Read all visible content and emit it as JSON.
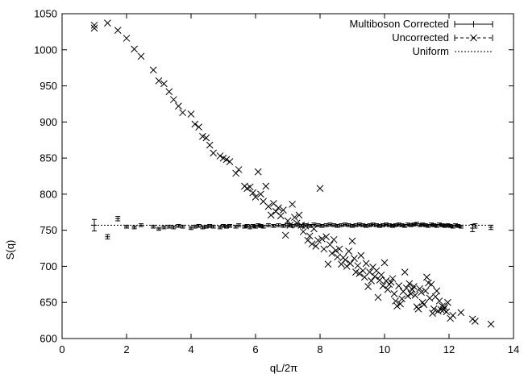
{
  "chart_data": {
    "type": "scatter",
    "xlabel": "qL/2π",
    "ylabel": "S(q)",
    "xlim": [
      0,
      14
    ],
    "ylim": [
      600,
      1050
    ],
    "xticks": [
      0,
      2,
      4,
      6,
      8,
      10,
      12,
      14
    ],
    "yticks": [
      600,
      650,
      700,
      750,
      800,
      850,
      900,
      950,
      1000,
      1050
    ],
    "grid": false,
    "legend_position": "top-right",
    "color": "#000000",
    "legend": [
      "Multiboson Corrected",
      "Uncorrected",
      "Uniform"
    ],
    "series": [
      {
        "name": "Multiboson Corrected",
        "marker": "plus-with-errorbars",
        "points": [
          {
            "x": 1.0,
            "y": 757,
            "err": 8
          },
          {
            "x": 1.41,
            "y": 741,
            "err": 3
          },
          {
            "x": 1.73,
            "y": 766,
            "err": 3
          },
          {
            "x": 2.0,
            "y": 755,
            "err": 2
          },
          {
            "x": 2.24,
            "y": 754,
            "err": 2
          },
          {
            "x": 2.45,
            "y": 757,
            "err": 2
          },
          {
            "x": 2.83,
            "y": 755,
            "err": 2
          },
          {
            "x": 3.0,
            "y": 752,
            "err": 2
          },
          {
            "x": 3.16,
            "y": 754,
            "err": 2
          },
          {
            "x": 3.32,
            "y": 755,
            "err": 2
          },
          {
            "x": 3.46,
            "y": 754,
            "err": 2
          },
          {
            "x": 3.61,
            "y": 756,
            "err": 2
          },
          {
            "x": 3.74,
            "y": 755,
            "err": 2
          },
          {
            "x": 4.0,
            "y": 753,
            "err": 2
          },
          {
            "x": 4.12,
            "y": 755,
            "err": 2
          },
          {
            "x": 4.24,
            "y": 756,
            "err": 2
          },
          {
            "x": 4.36,
            "y": 754,
            "err": 2
          },
          {
            "x": 4.47,
            "y": 755,
            "err": 2
          },
          {
            "x": 4.58,
            "y": 756,
            "err": 2
          },
          {
            "x": 4.69,
            "y": 755,
            "err": 2
          },
          {
            "x": 4.9,
            "y": 754,
            "err": 2
          },
          {
            "x": 5.0,
            "y": 756,
            "err": 2
          },
          {
            "x": 5.1,
            "y": 755,
            "err": 2
          },
          {
            "x": 5.2,
            "y": 756,
            "err": 2
          },
          {
            "x": 5.39,
            "y": 755,
            "err": 2
          },
          {
            "x": 5.48,
            "y": 757,
            "err": 2
          },
          {
            "x": 5.66,
            "y": 755,
            "err": 2
          },
          {
            "x": 5.74,
            "y": 756,
            "err": 2
          },
          {
            "x": 5.83,
            "y": 754,
            "err": 2
          },
          {
            "x": 5.92,
            "y": 756,
            "err": 2
          },
          {
            "x": 6.0,
            "y": 755,
            "err": 2
          },
          {
            "x": 6.08,
            "y": 757,
            "err": 2
          },
          {
            "x": 6.16,
            "y": 756,
            "err": 2
          },
          {
            "x": 6.24,
            "y": 755,
            "err": 2
          },
          {
            "x": 6.4,
            "y": 757,
            "err": 2
          },
          {
            "x": 6.56,
            "y": 756,
            "err": 2
          },
          {
            "x": 6.71,
            "y": 757,
            "err": 2
          },
          {
            "x": 6.86,
            "y": 756,
            "err": 2
          },
          {
            "x": 7.0,
            "y": 757,
            "err": 2
          },
          {
            "x": 7.14,
            "y": 756,
            "err": 2
          },
          {
            "x": 7.28,
            "y": 757,
            "err": 2
          },
          {
            "x": 7.42,
            "y": 756,
            "err": 2
          },
          {
            "x": 7.55,
            "y": 757,
            "err": 2
          },
          {
            "x": 7.68,
            "y": 756,
            "err": 2
          },
          {
            "x": 7.81,
            "y": 758,
            "err": 2
          },
          {
            "x": 7.94,
            "y": 757,
            "err": 2
          },
          {
            "x": 8.06,
            "y": 756,
            "err": 2
          },
          {
            "x": 8.19,
            "y": 757,
            "err": 2
          },
          {
            "x": 8.31,
            "y": 758,
            "err": 2
          },
          {
            "x": 8.43,
            "y": 757,
            "err": 2
          },
          {
            "x": 8.54,
            "y": 756,
            "err": 2
          },
          {
            "x": 8.66,
            "y": 757,
            "err": 2
          },
          {
            "x": 8.78,
            "y": 758,
            "err": 2
          },
          {
            "x": 8.89,
            "y": 757,
            "err": 2
          },
          {
            "x": 9.0,
            "y": 756,
            "err": 2
          },
          {
            "x": 9.11,
            "y": 757,
            "err": 2
          },
          {
            "x": 9.22,
            "y": 758,
            "err": 2
          },
          {
            "x": 9.33,
            "y": 757,
            "err": 2
          },
          {
            "x": 9.43,
            "y": 756,
            "err": 2
          },
          {
            "x": 9.54,
            "y": 757,
            "err": 2
          },
          {
            "x": 9.64,
            "y": 758,
            "err": 2
          },
          {
            "x": 9.75,
            "y": 757,
            "err": 2
          },
          {
            "x": 9.85,
            "y": 756,
            "err": 2
          },
          {
            "x": 9.95,
            "y": 757,
            "err": 2
          },
          {
            "x": 10.05,
            "y": 758,
            "err": 2
          },
          {
            "x": 10.15,
            "y": 757,
            "err": 2
          },
          {
            "x": 10.25,
            "y": 756,
            "err": 2
          },
          {
            "x": 10.34,
            "y": 757,
            "err": 2
          },
          {
            "x": 10.44,
            "y": 758,
            "err": 2
          },
          {
            "x": 10.54,
            "y": 757,
            "err": 2
          },
          {
            "x": 10.63,
            "y": 756,
            "err": 2
          },
          {
            "x": 10.72,
            "y": 758,
            "err": 2
          },
          {
            "x": 10.82,
            "y": 757,
            "err": 2
          },
          {
            "x": 10.91,
            "y": 758,
            "err": 2
          },
          {
            "x": 11.0,
            "y": 759,
            "err": 2
          },
          {
            "x": 11.09,
            "y": 757,
            "err": 2
          },
          {
            "x": 11.18,
            "y": 758,
            "err": 2
          },
          {
            "x": 11.27,
            "y": 757,
            "err": 2
          },
          {
            "x": 11.36,
            "y": 756,
            "err": 2
          },
          {
            "x": 11.45,
            "y": 758,
            "err": 2
          },
          {
            "x": 11.53,
            "y": 757,
            "err": 2
          },
          {
            "x": 11.62,
            "y": 756,
            "err": 2
          },
          {
            "x": 11.7,
            "y": 758,
            "err": 2
          },
          {
            "x": 11.79,
            "y": 757,
            "err": 2
          },
          {
            "x": 11.87,
            "y": 756,
            "err": 2
          },
          {
            "x": 11.96,
            "y": 757,
            "err": 2
          },
          {
            "x": 12.04,
            "y": 756,
            "err": 2
          },
          {
            "x": 12.12,
            "y": 755,
            "err": 2
          },
          {
            "x": 12.2,
            "y": 757,
            "err": 2
          },
          {
            "x": 12.28,
            "y": 756,
            "err": 2
          },
          {
            "x": 12.37,
            "y": 755,
            "err": 2
          },
          {
            "x": 12.73,
            "y": 753,
            "err": 5
          },
          {
            "x": 12.81,
            "y": 756,
            "err": 3
          },
          {
            "x": 13.3,
            "y": 754,
            "err": 3
          }
        ]
      },
      {
        "name": "Uncorrected",
        "marker": "x",
        "points": [
          {
            "x": 1.0,
            "y": 1030
          },
          {
            "x": 1.0,
            "y": 1034
          },
          {
            "x": 1.41,
            "y": 1037
          },
          {
            "x": 1.73,
            "y": 1027
          },
          {
            "x": 2.0,
            "y": 1016
          },
          {
            "x": 2.24,
            "y": 1001
          },
          {
            "x": 2.45,
            "y": 991
          },
          {
            "x": 2.83,
            "y": 972
          },
          {
            "x": 3.0,
            "y": 957
          },
          {
            "x": 3.16,
            "y": 953
          },
          {
            "x": 3.32,
            "y": 942
          },
          {
            "x": 3.46,
            "y": 931
          },
          {
            "x": 3.61,
            "y": 922
          },
          {
            "x": 3.74,
            "y": 913
          },
          {
            "x": 4.0,
            "y": 911
          },
          {
            "x": 4.12,
            "y": 897
          },
          {
            "x": 4.24,
            "y": 893
          },
          {
            "x": 4.36,
            "y": 880
          },
          {
            "x": 4.47,
            "y": 878
          },
          {
            "x": 4.58,
            "y": 868
          },
          {
            "x": 4.69,
            "y": 857
          },
          {
            "x": 4.9,
            "y": 853
          },
          {
            "x": 5.0,
            "y": 850
          },
          {
            "x": 5.1,
            "y": 848
          },
          {
            "x": 5.2,
            "y": 845
          },
          {
            "x": 5.39,
            "y": 829
          },
          {
            "x": 5.48,
            "y": 834
          },
          {
            "x": 5.66,
            "y": 811
          },
          {
            "x": 5.74,
            "y": 808
          },
          {
            "x": 5.83,
            "y": 810
          },
          {
            "x": 5.92,
            "y": 802
          },
          {
            "x": 6.0,
            "y": 796
          },
          {
            "x": 6.08,
            "y": 831
          },
          {
            "x": 6.16,
            "y": 800
          },
          {
            "x": 6.24,
            "y": 790
          },
          {
            "x": 6.32,
            "y": 811
          },
          {
            "x": 6.4,
            "y": 783
          },
          {
            "x": 6.48,
            "y": 771
          },
          {
            "x": 6.56,
            "y": 787
          },
          {
            "x": 6.63,
            "y": 776
          },
          {
            "x": 6.71,
            "y": 781
          },
          {
            "x": 6.78,
            "y": 770
          },
          {
            "x": 6.86,
            "y": 778
          },
          {
            "x": 6.93,
            "y": 743
          },
          {
            "x": 7.0,
            "y": 763
          },
          {
            "x": 7.07,
            "y": 757
          },
          {
            "x": 7.14,
            "y": 786
          },
          {
            "x": 7.21,
            "y": 768
          },
          {
            "x": 7.28,
            "y": 760
          },
          {
            "x": 7.35,
            "y": 771
          },
          {
            "x": 7.42,
            "y": 757
          },
          {
            "x": 7.48,
            "y": 748
          },
          {
            "x": 7.55,
            "y": 756
          },
          {
            "x": 7.62,
            "y": 736
          },
          {
            "x": 7.68,
            "y": 742
          },
          {
            "x": 7.75,
            "y": 731
          },
          {
            "x": 7.81,
            "y": 752
          },
          {
            "x": 7.87,
            "y": 728
          },
          {
            "x": 7.94,
            "y": 736
          },
          {
            "x": 8.0,
            "y": 808
          },
          {
            "x": 8.06,
            "y": 738
          },
          {
            "x": 8.12,
            "y": 724
          },
          {
            "x": 8.19,
            "y": 741
          },
          {
            "x": 8.25,
            "y": 703
          },
          {
            "x": 8.31,
            "y": 730
          },
          {
            "x": 8.37,
            "y": 718
          },
          {
            "x": 8.43,
            "y": 737
          },
          {
            "x": 8.49,
            "y": 722
          },
          {
            "x": 8.54,
            "y": 713
          },
          {
            "x": 8.6,
            "y": 724
          },
          {
            "x": 8.66,
            "y": 703
          },
          {
            "x": 8.72,
            "y": 712
          },
          {
            "x": 8.78,
            "y": 709
          },
          {
            "x": 8.83,
            "y": 700
          },
          {
            "x": 8.89,
            "y": 721
          },
          {
            "x": 8.94,
            "y": 704
          },
          {
            "x": 9.0,
            "y": 735
          },
          {
            "x": 9.06,
            "y": 711
          },
          {
            "x": 9.11,
            "y": 692
          },
          {
            "x": 9.17,
            "y": 701
          },
          {
            "x": 9.22,
            "y": 690
          },
          {
            "x": 9.27,
            "y": 715
          },
          {
            "x": 9.33,
            "y": 694
          },
          {
            "x": 9.38,
            "y": 685
          },
          {
            "x": 9.43,
            "y": 704
          },
          {
            "x": 9.49,
            "y": 672
          },
          {
            "x": 9.54,
            "y": 692
          },
          {
            "x": 9.59,
            "y": 680
          },
          {
            "x": 9.64,
            "y": 699
          },
          {
            "x": 9.7,
            "y": 686
          },
          {
            "x": 9.75,
            "y": 694
          },
          {
            "x": 9.8,
            "y": 657
          },
          {
            "x": 9.85,
            "y": 681
          },
          {
            "x": 9.9,
            "y": 688
          },
          {
            "x": 9.95,
            "y": 673
          },
          {
            "x": 10.0,
            "y": 705
          },
          {
            "x": 10.05,
            "y": 680
          },
          {
            "x": 10.1,
            "y": 668
          },
          {
            "x": 10.15,
            "y": 675
          },
          {
            "x": 10.2,
            "y": 678
          },
          {
            "x": 10.25,
            "y": 683
          },
          {
            "x": 10.3,
            "y": 662
          },
          {
            "x": 10.34,
            "y": 652
          },
          {
            "x": 10.39,
            "y": 645
          },
          {
            "x": 10.44,
            "y": 673
          },
          {
            "x": 10.49,
            "y": 648
          },
          {
            "x": 10.54,
            "y": 655
          },
          {
            "x": 10.58,
            "y": 665
          },
          {
            "x": 10.63,
            "y": 692
          },
          {
            "x": 10.68,
            "y": 670
          },
          {
            "x": 10.72,
            "y": 659
          },
          {
            "x": 10.77,
            "y": 676
          },
          {
            "x": 10.82,
            "y": 662
          },
          {
            "x": 10.86,
            "y": 668
          },
          {
            "x": 10.91,
            "y": 672
          },
          {
            "x": 10.95,
            "y": 660
          },
          {
            "x": 11.0,
            "y": 644
          },
          {
            "x": 11.05,
            "y": 641
          },
          {
            "x": 11.09,
            "y": 669
          },
          {
            "x": 11.14,
            "y": 664
          },
          {
            "x": 11.18,
            "y": 650
          },
          {
            "x": 11.22,
            "y": 647
          },
          {
            "x": 11.27,
            "y": 666
          },
          {
            "x": 11.31,
            "y": 685
          },
          {
            "x": 11.36,
            "y": 677
          },
          {
            "x": 11.4,
            "y": 656
          },
          {
            "x": 11.45,
            "y": 675
          },
          {
            "x": 11.49,
            "y": 635
          },
          {
            "x": 11.53,
            "y": 641
          },
          {
            "x": 11.58,
            "y": 658
          },
          {
            "x": 11.62,
            "y": 666
          },
          {
            "x": 11.66,
            "y": 638
          },
          {
            "x": 11.7,
            "y": 652
          },
          {
            "x": 11.75,
            "y": 640
          },
          {
            "x": 11.79,
            "y": 645
          },
          {
            "x": 11.83,
            "y": 640
          },
          {
            "x": 11.87,
            "y": 643
          },
          {
            "x": 11.92,
            "y": 637
          },
          {
            "x": 11.96,
            "y": 650
          },
          {
            "x": 12.04,
            "y": 628
          },
          {
            "x": 12.12,
            "y": 632
          },
          {
            "x": 12.37,
            "y": 636
          },
          {
            "x": 12.73,
            "y": 627
          },
          {
            "x": 12.81,
            "y": 624
          },
          {
            "x": 13.3,
            "y": 620
          }
        ]
      },
      {
        "name": "Uniform",
        "style": "dotted-line",
        "x": [
          0.9,
          13.4
        ],
        "y": [
          757,
          757
        ]
      }
    ]
  }
}
